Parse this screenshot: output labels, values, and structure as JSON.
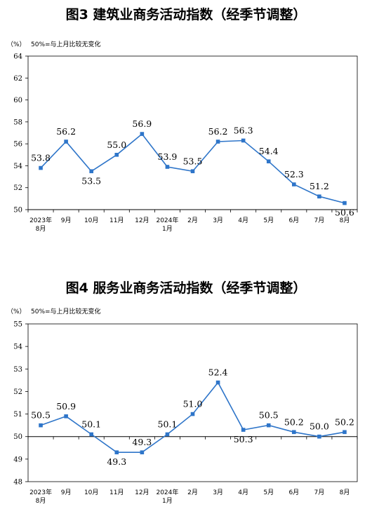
{
  "chart_data": [
    {
      "type": "line",
      "title": "图3  建筑业商务活动指数（经季节调整）",
      "unit": "（%）",
      "note": "50%=与上月比较无变化",
      "categories": [
        [
          "2023年",
          "8月"
        ],
        [
          "9月"
        ],
        [
          "10月"
        ],
        [
          "11月"
        ],
        [
          "12月"
        ],
        [
          "2024年",
          "1月"
        ],
        [
          "2月"
        ],
        [
          "3月"
        ],
        [
          "4月"
        ],
        [
          "5月"
        ],
        [
          "6月"
        ],
        [
          "7月"
        ],
        [
          "8月"
        ]
      ],
      "values": [
        53.8,
        56.2,
        53.5,
        55.0,
        56.9,
        53.9,
        53.5,
        56.2,
        56.3,
        54.4,
        52.3,
        51.2,
        50.6
      ],
      "value_labels": [
        "53.8",
        "56.2",
        "53.5",
        "55.0",
        "56.9",
        "53.9",
        "53.5",
        "56.2",
        "56.3",
        "54.4",
        "52.3",
        "51.2",
        "50.6"
      ],
      "ylim": [
        50,
        64
      ],
      "yticks": [
        50,
        52,
        54,
        56,
        58,
        60,
        62,
        64
      ],
      "ytick_labels": [
        "50",
        "52",
        "54",
        "56",
        "58",
        "60",
        "62",
        "64"
      ],
      "baseline": 50,
      "grid": false,
      "line_color": "#2e75c9"
    },
    {
      "type": "line",
      "title": "图4  服务业商务活动指数（经季节调整）",
      "unit": "（%）",
      "note": "50%=与上月比较无变化",
      "categories": [
        [
          "2023年",
          "8月"
        ],
        [
          "9月"
        ],
        [
          "10月"
        ],
        [
          "11月"
        ],
        [
          "12月"
        ],
        [
          "2024年",
          "1月"
        ],
        [
          "2月"
        ],
        [
          "3月"
        ],
        [
          "4月"
        ],
        [
          "5月"
        ],
        [
          "6月"
        ],
        [
          "7月"
        ],
        [
          "8月"
        ]
      ],
      "values": [
        50.5,
        50.9,
        50.1,
        49.3,
        49.3,
        50.1,
        51.0,
        52.4,
        50.3,
        50.5,
        50.2,
        50.0,
        50.2
      ],
      "value_labels": [
        "50.5",
        "50.9",
        "50.1",
        "49.3",
        "49.3",
        "50.1",
        "51.0",
        "52.4",
        "50.3",
        "50.5",
        "50.2",
        "50.0",
        "50.2"
      ],
      "ylim": [
        48,
        55
      ],
      "yticks": [
        48,
        49,
        50,
        51,
        52,
        53,
        54,
        55
      ],
      "ytick_labels": [
        "48",
        "49",
        "50",
        "51",
        "52",
        "53",
        "54",
        "55"
      ],
      "baseline": 50,
      "grid": false,
      "line_color": "#2e75c9"
    }
  ]
}
